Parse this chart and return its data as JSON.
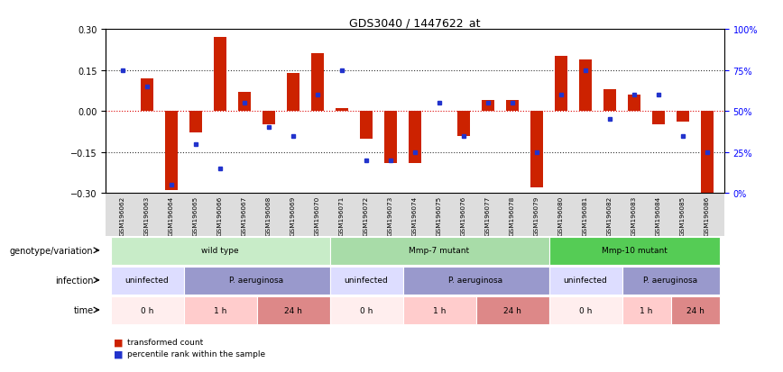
{
  "title": "GDS3040 / 1447622_at",
  "samples": [
    "GSM196062",
    "GSM196063",
    "GSM196064",
    "GSM196065",
    "GSM196066",
    "GSM196067",
    "GSM196068",
    "GSM196069",
    "GSM196070",
    "GSM196071",
    "GSM196072",
    "GSM196073",
    "GSM196074",
    "GSM196075",
    "GSM196076",
    "GSM196077",
    "GSM196078",
    "GSM196079",
    "GSM196080",
    "GSM196081",
    "GSM196082",
    "GSM196083",
    "GSM196084",
    "GSM196085",
    "GSM196086"
  ],
  "red_bars": [
    0.0,
    0.12,
    -0.29,
    -0.08,
    0.27,
    0.07,
    -0.05,
    0.14,
    0.21,
    0.01,
    -0.1,
    -0.19,
    -0.19,
    0.0,
    -0.09,
    0.04,
    0.04,
    -0.28,
    0.2,
    0.19,
    0.08,
    0.06,
    -0.05,
    -0.04,
    -0.3
  ],
  "blue_vals": [
    75,
    65,
    5,
    30,
    15,
    55,
    40,
    35,
    60,
    75,
    20,
    20,
    25,
    55,
    35,
    55,
    55,
    25,
    60,
    75,
    45,
    60,
    60,
    35,
    25
  ],
  "ylim_left": [
    -0.3,
    0.3
  ],
  "ylim_right": [
    0,
    100
  ],
  "yticks_left": [
    -0.3,
    -0.15,
    0.0,
    0.15,
    0.3
  ],
  "yticks_right": [
    0,
    25,
    50,
    75,
    100
  ],
  "ytick_labels_right": [
    "0%",
    "25%",
    "50%",
    "75%",
    "100%"
  ],
  "hlines": [
    -0.15,
    0.0,
    0.15
  ],
  "genotype_groups": [
    {
      "label": "wild type",
      "start": 0,
      "end": 8,
      "color": "#c8ecc8"
    },
    {
      "label": "Mmp-7 mutant",
      "start": 9,
      "end": 17,
      "color": "#a8dca8"
    },
    {
      "label": "Mmp-10 mutant",
      "start": 18,
      "end": 24,
      "color": "#55cc55"
    }
  ],
  "infection_groups": [
    {
      "label": "uninfected",
      "start": 0,
      "end": 2,
      "color": "#ddddff"
    },
    {
      "label": "P. aeruginosa",
      "start": 3,
      "end": 8,
      "color": "#9999cc"
    },
    {
      "label": "uninfected",
      "start": 9,
      "end": 11,
      "color": "#ddddff"
    },
    {
      "label": "P. aeruginosa",
      "start": 12,
      "end": 17,
      "color": "#9999cc"
    },
    {
      "label": "uninfected",
      "start": 18,
      "end": 20,
      "color": "#ddddff"
    },
    {
      "label": "P. aeruginosa",
      "start": 21,
      "end": 24,
      "color": "#9999cc"
    }
  ],
  "time_groups": [
    {
      "label": "0 h",
      "start": 0,
      "end": 2,
      "color": "#ffeeee"
    },
    {
      "label": "1 h",
      "start": 3,
      "end": 5,
      "color": "#ffcccc"
    },
    {
      "label": "24 h",
      "start": 6,
      "end": 8,
      "color": "#dd8888"
    },
    {
      "label": "0 h",
      "start": 9,
      "end": 11,
      "color": "#ffeeee"
    },
    {
      "label": "1 h",
      "start": 12,
      "end": 14,
      "color": "#ffcccc"
    },
    {
      "label": "24 h",
      "start": 15,
      "end": 17,
      "color": "#dd8888"
    },
    {
      "label": "0 h",
      "start": 18,
      "end": 20,
      "color": "#ffeeee"
    },
    {
      "label": "1 h",
      "start": 21,
      "end": 22,
      "color": "#ffcccc"
    },
    {
      "label": "24 h",
      "start": 23,
      "end": 24,
      "color": "#dd8888"
    }
  ],
  "bar_color": "#cc2200",
  "blue_color": "#2233cc",
  "legend_items": [
    {
      "label": "transformed count",
      "color": "#cc2200"
    },
    {
      "label": "percentile rank within the sample",
      "color": "#2233cc"
    }
  ],
  "row_labels": [
    "genotype/variation",
    "infection",
    "time"
  ],
  "xtick_bg": "#dddddd"
}
